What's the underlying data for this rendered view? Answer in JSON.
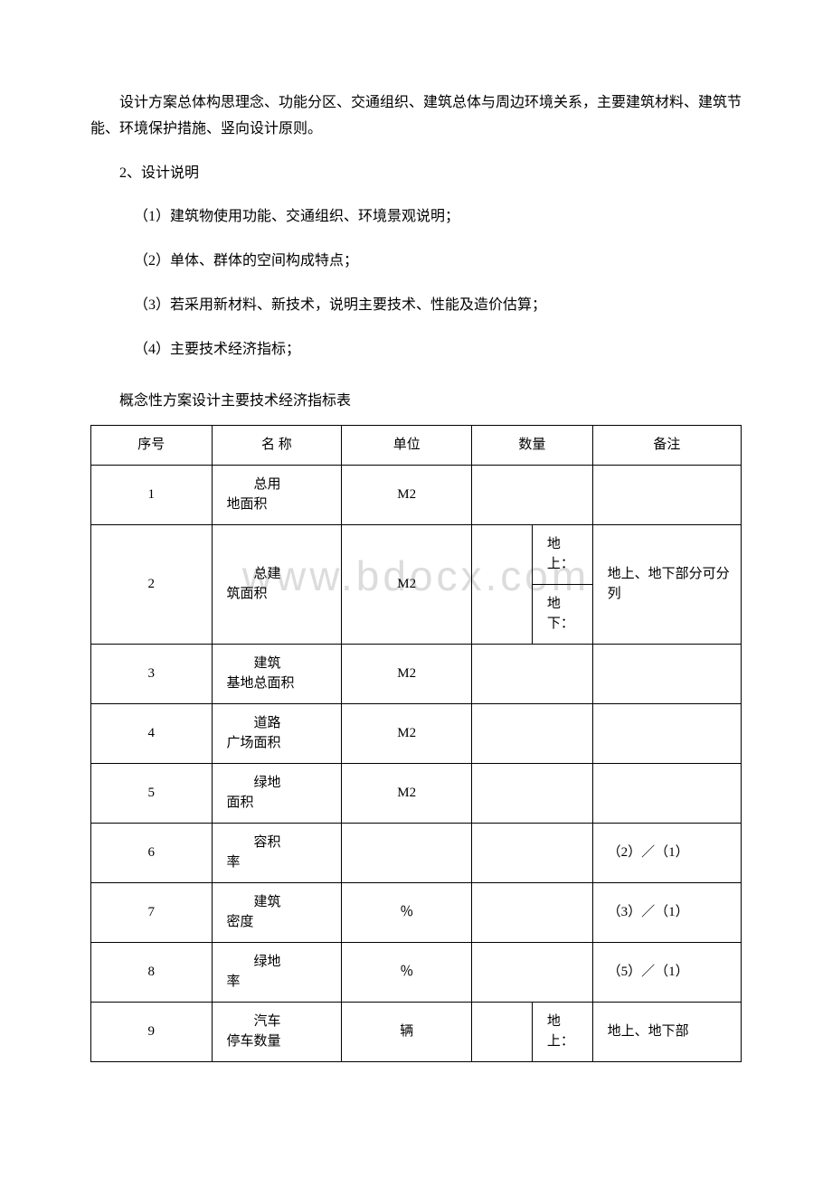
{
  "watermark": "www.bdocx.com",
  "paragraphs": {
    "intro": "设计方案总体构思理念、功能分区、交通组织、建筑总体与周边环境关系，主要建筑材料、建筑节能、环境保护措施、竖向设计原则。",
    "section2": "2、设计说明",
    "item1": "（1）建筑物使用功能、交通组织、环境景观说明；",
    "item2": "（2）单体、群体的空间构成特点；",
    "item3": "（3）若采用新材料、新技术，说明主要技术、性能及造价估算；",
    "item4": "（4）主要技术经济指标；",
    "table_title": "概念性方案设计主要技术经济指标表"
  },
  "table": {
    "headers": {
      "seq": "序号",
      "name": "名 称",
      "unit": "单位",
      "qty": "数量",
      "remark": "备注"
    },
    "rows": {
      "r1": {
        "seq": "1",
        "name_l1": "总用",
        "name_l2": "地面积",
        "unit": "M2",
        "remark": ""
      },
      "r2": {
        "seq": "2",
        "name_l1": "总建",
        "name_l2": "筑面积",
        "unit": "M2",
        "sub1": "地上：",
        "sub2": "地下：",
        "remark": "地上、地下部分可分列"
      },
      "r3": {
        "seq": "3",
        "name_l1": "建筑",
        "name_l2": "基地总面积",
        "unit": "M2",
        "remark": ""
      },
      "r4": {
        "seq": "4",
        "name_l1": "道路",
        "name_l2": "广场面积",
        "unit": "M2",
        "remark": ""
      },
      "r5": {
        "seq": "5",
        "name_l1": "绿地",
        "name_l2": "面积",
        "unit": "M2",
        "remark": ""
      },
      "r6": {
        "seq": "6",
        "name_l1": "容积",
        "name_l2": "率",
        "unit": "",
        "remark": "（2）／（1）"
      },
      "r7": {
        "seq": "7",
        "name_l1": "建筑",
        "name_l2": "密度",
        "unit": "％",
        "remark": "（3）／（1）"
      },
      "r8": {
        "seq": "8",
        "name_l1": "绿地",
        "name_l2": "率",
        "unit": "％",
        "remark": "（5）／（1）"
      },
      "r9": {
        "seq": "9",
        "name_l1": "汽车",
        "name_l2": "停车数量",
        "unit": "辆",
        "sub1": "地上：",
        "remark": "地上、地下部"
      }
    }
  },
  "style": {
    "text_color": "#000000",
    "background_color": "#ffffff",
    "watermark_color": "#dcdcdc",
    "border_color": "#000000",
    "font_size_body": 16,
    "font_size_table": 15,
    "font_size_watermark": 46
  }
}
